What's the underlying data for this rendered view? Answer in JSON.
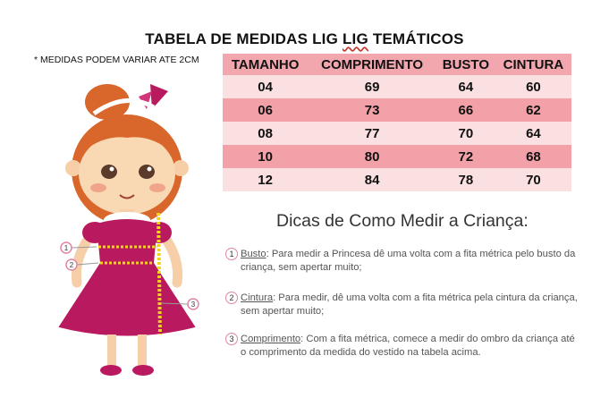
{
  "title": "TABELA DE MEDIDAS LIG LIG TEMÁTICOS",
  "title_parts": {
    "prefix": "TABELA DE MEDIDAS LIG ",
    "wavy": "LIG",
    "suffix": " TEMÁTICOS"
  },
  "note": "* MEDIDAS PODEM VARIAR ATE 2CM",
  "table": {
    "headers": [
      "TAMANHO",
      "COMPRIMENTO",
      "BUSTO",
      "CINTURA"
    ],
    "rows": [
      [
        "04",
        "69",
        "64",
        "60"
      ],
      [
        "06",
        "73",
        "66",
        "62"
      ],
      [
        "08",
        "77",
        "70",
        "64"
      ],
      [
        "10",
        "80",
        "72",
        "68"
      ],
      [
        "12",
        "84",
        "78",
        "70"
      ]
    ]
  },
  "colors": {
    "header_bg": "#f2a6ad",
    "row_light": "#fbe0e1",
    "row_dark": "#f2a1a8",
    "dress": "#b9195f",
    "hair": "#d9662b",
    "tape": "#f2d21b"
  },
  "tips": {
    "title": "Dicas de Como Medir a Criança:",
    "items": [
      {
        "num": "1",
        "head": "Busto",
        "text": ": Para medir a Princesa dê uma volta com a fita métrica pelo busto da criança, sem apertar muito;"
      },
      {
        "num": "2",
        "head": "Cintura",
        "text": ": Para medir, dê uma volta com a fita métrica pela cintura da criança, sem apertar muito;"
      },
      {
        "num": "3",
        "head": "Comprimento",
        "text": ": Com a fita métrica, comece a medir do ombro da criança até o comprimento da medida do vestido na tabela acima."
      }
    ]
  },
  "illustration": {
    "markers": [
      "1",
      "2",
      "3"
    ],
    "icon": "girl-measuring-illustration"
  }
}
